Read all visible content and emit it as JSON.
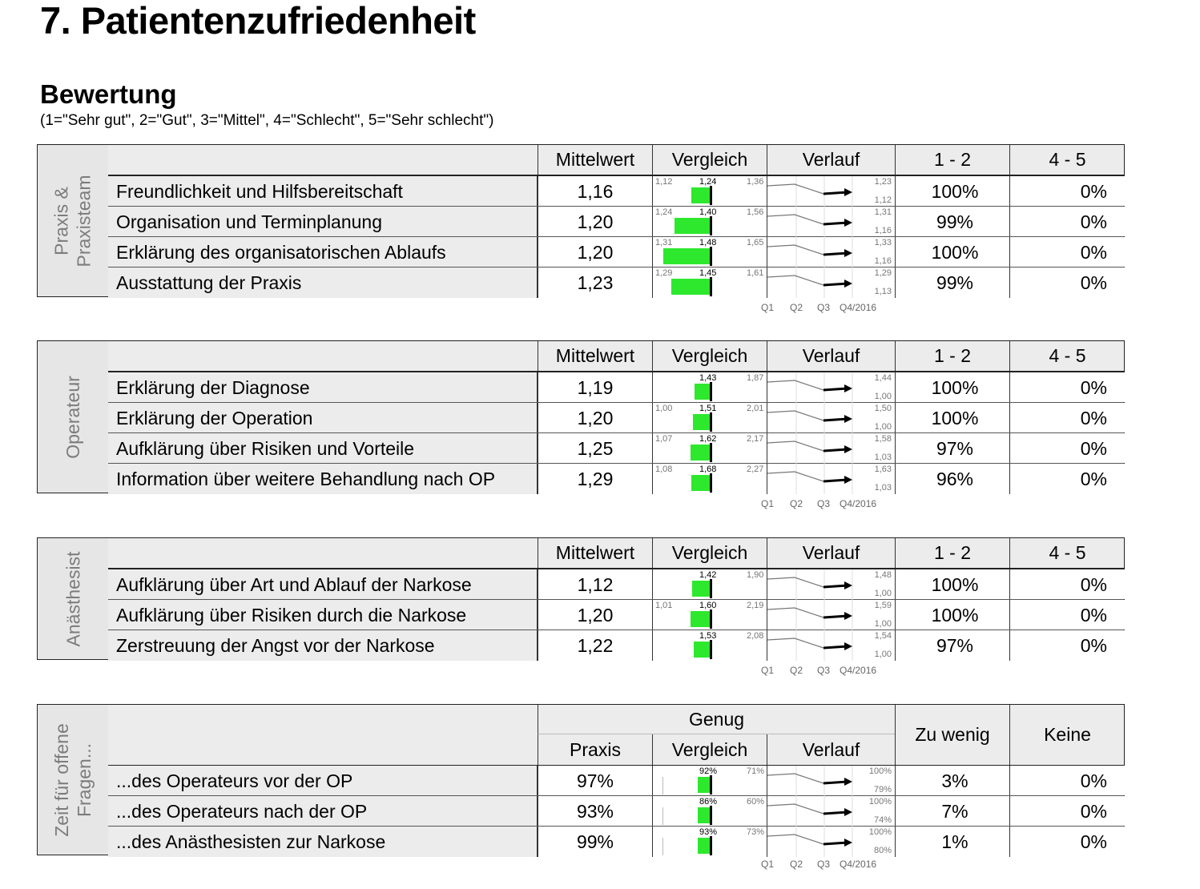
{
  "title": "7. Patientenzufriedenheit",
  "subtitle": "Bewertung",
  "scale_legend": "(1=\"Sehr gut\", 2=\"Gut\", 3=\"Mittel\", 4=\"Schlecht\", 5=\"Sehr schlecht\")",
  "headers": {
    "mittelwert": "Mittelwert",
    "vergleich": "Vergleich",
    "verlauf": "Verlauf",
    "p12": "1 - 2",
    "p45": "4 - 5"
  },
  "quarters": [
    "Q1",
    "Q2",
    "Q3",
    "Q4/2016"
  ],
  "sections": [
    {
      "side_label": [
        "Praxis &",
        "Praxisteam"
      ],
      "rows": [
        {
          "label": "Freundlichkeit und Hilfsbereitschaft",
          "mean": "1,16",
          "cmp_min": "1,12",
          "cmp_avg": "1,24",
          "cmp_max": "1,36",
          "trend_hi": "1,23",
          "trend_lo": "1,12",
          "p12": "100%",
          "p45": "0%"
        },
        {
          "label": "Organisation und Terminplanung",
          "mean": "1,20",
          "cmp_min": "1,24",
          "cmp_avg": "1,40",
          "cmp_max": "1,56",
          "trend_hi": "1,31",
          "trend_lo": "1,16",
          "p12": "99%",
          "p45": "0%"
        },
        {
          "label": "Erklärung des organisatorischen Ablaufs",
          "mean": "1,20",
          "cmp_min": "1,31",
          "cmp_avg": "1,48",
          "cmp_max": "1,65",
          "trend_hi": "1,33",
          "trend_lo": "1,16",
          "p12": "100%",
          "p45": "0%"
        },
        {
          "label": "Ausstattung der Praxis",
          "mean": "1,23",
          "cmp_min": "1,29",
          "cmp_avg": "1,45",
          "cmp_max": "1,61",
          "trend_hi": "1,29",
          "trend_lo": "1,13",
          "p12": "99%",
          "p45": "0%"
        }
      ]
    },
    {
      "side_label": [
        "Operateur"
      ],
      "rows": [
        {
          "label": "Erklärung der Diagnose",
          "mean": "1,19",
          "cmp_min": "",
          "cmp_avg": "1,43",
          "cmp_max": "1,87",
          "trend_hi": "1,44",
          "trend_lo": "1,00",
          "p12": "100%",
          "p45": "0%"
        },
        {
          "label": "Erklärung der Operation",
          "mean": "1,20",
          "cmp_min": "1,00",
          "cmp_avg": "1,51",
          "cmp_max": "2,01",
          "trend_hi": "1,50",
          "trend_lo": "1,00",
          "p12": "100%",
          "p45": "0%"
        },
        {
          "label": "Aufklärung über Risiken und Vorteile",
          "mean": "1,25",
          "cmp_min": "1,07",
          "cmp_avg": "1,62",
          "cmp_max": "2,17",
          "trend_hi": "1,58",
          "trend_lo": "1,03",
          "p12": "97%",
          "p45": "0%"
        },
        {
          "label": "Information über weitere Behandlung nach OP",
          "mean": "1,29",
          "cmp_min": "1,08",
          "cmp_avg": "1,68",
          "cmp_max": "2,27",
          "trend_hi": "1,63",
          "trend_lo": "1,03",
          "p12": "96%",
          "p45": "0%"
        }
      ]
    },
    {
      "side_label": [
        "Anästhesist"
      ],
      "rows": [
        {
          "label": "Aufklärung über Art und Ablauf der Narkose",
          "mean": "1,12",
          "cmp_min": "",
          "cmp_avg": "1,42",
          "cmp_max": "1,90",
          "trend_hi": "1,48",
          "trend_lo": "1,00",
          "p12": "100%",
          "p45": "0%"
        },
        {
          "label": "Aufklärung über Risiken durch die Narkose",
          "mean": "1,20",
          "cmp_min": "1,01",
          "cmp_avg": "1,60",
          "cmp_max": "2,19",
          "trend_hi": "1,59",
          "trend_lo": "1,00",
          "p12": "100%",
          "p45": "0%"
        },
        {
          "label": "Zerstreuung der Angst vor der Narkose",
          "mean": "1,22",
          "cmp_min": "",
          "cmp_avg": "1,53",
          "cmp_max": "2,08",
          "trend_hi": "1,54",
          "trend_lo": "1,00",
          "p12": "97%",
          "p45": "0%"
        }
      ]
    }
  ],
  "questions": {
    "side_label": [
      "Zeit für offene",
      "Fragen..."
    ],
    "headers": {
      "genug": "Genug",
      "praxis": "Praxis",
      "vergleich": "Vergleich",
      "verlauf": "Verlauf",
      "zu_wenig": "Zu wenig",
      "keine": "Keine"
    },
    "rows": [
      {
        "label": "...des Operateurs vor der OP",
        "praxis": "97%",
        "cmp_avg": "92%",
        "cmp_min": "71%",
        "trend_hi": "100%",
        "trend_lo": "79%",
        "zu_wenig": "3%",
        "keine": "0%"
      },
      {
        "label": "...des Operateurs nach der OP",
        "praxis": "93%",
        "cmp_avg": "86%",
        "cmp_min": "60%",
        "trend_hi": "100%",
        "trend_lo": "74%",
        "zu_wenig": "7%",
        "keine": "0%"
      },
      {
        "label": "...des Anästhesisten zur Narkose",
        "praxis": "99%",
        "cmp_avg": "93%",
        "cmp_min": "73%",
        "trend_hi": "100%",
        "trend_lo": "80%",
        "zu_wenig": "1%",
        "keine": "0%"
      }
    ]
  }
}
